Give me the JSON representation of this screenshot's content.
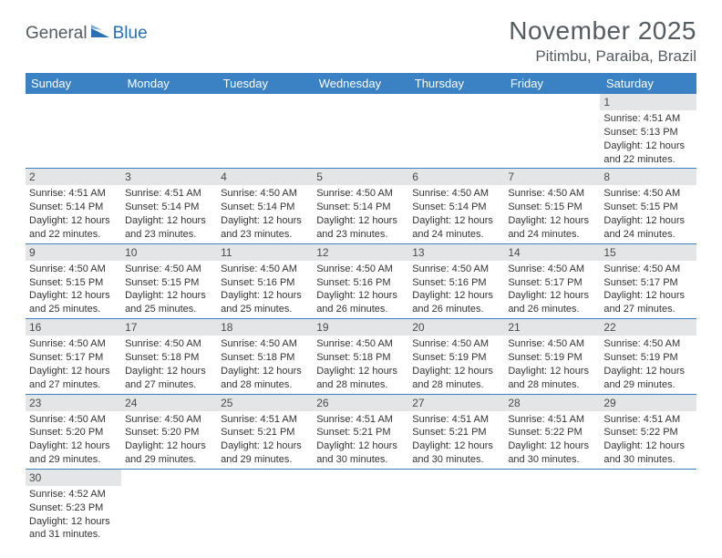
{
  "brand": {
    "part1": "General",
    "part2": "Blue"
  },
  "title": "November 2025",
  "location": "Pitimbu, Paraiba, Brazil",
  "colors": {
    "header_bg": "#3b82c4",
    "header_text": "#ffffff",
    "daynum_bg": "#e4e5e6",
    "rule": "#3b82c4",
    "logo_gray": "#555c60",
    "logo_blue": "#2a6fb5"
  },
  "weekdays": [
    "Sunday",
    "Monday",
    "Tuesday",
    "Wednesday",
    "Thursday",
    "Friday",
    "Saturday"
  ],
  "weeks": [
    [
      null,
      null,
      null,
      null,
      null,
      null,
      {
        "n": "1",
        "sr": "4:51 AM",
        "ss": "5:13 PM",
        "dl": "12 hours and 22 minutes."
      }
    ],
    [
      {
        "n": "2",
        "sr": "4:51 AM",
        "ss": "5:14 PM",
        "dl": "12 hours and 22 minutes."
      },
      {
        "n": "3",
        "sr": "4:51 AM",
        "ss": "5:14 PM",
        "dl": "12 hours and 23 minutes."
      },
      {
        "n": "4",
        "sr": "4:50 AM",
        "ss": "5:14 PM",
        "dl": "12 hours and 23 minutes."
      },
      {
        "n": "5",
        "sr": "4:50 AM",
        "ss": "5:14 PM",
        "dl": "12 hours and 23 minutes."
      },
      {
        "n": "6",
        "sr": "4:50 AM",
        "ss": "5:14 PM",
        "dl": "12 hours and 24 minutes."
      },
      {
        "n": "7",
        "sr": "4:50 AM",
        "ss": "5:15 PM",
        "dl": "12 hours and 24 minutes."
      },
      {
        "n": "8",
        "sr": "4:50 AM",
        "ss": "5:15 PM",
        "dl": "12 hours and 24 minutes."
      }
    ],
    [
      {
        "n": "9",
        "sr": "4:50 AM",
        "ss": "5:15 PM",
        "dl": "12 hours and 25 minutes."
      },
      {
        "n": "10",
        "sr": "4:50 AM",
        "ss": "5:15 PM",
        "dl": "12 hours and 25 minutes."
      },
      {
        "n": "11",
        "sr": "4:50 AM",
        "ss": "5:16 PM",
        "dl": "12 hours and 25 minutes."
      },
      {
        "n": "12",
        "sr": "4:50 AM",
        "ss": "5:16 PM",
        "dl": "12 hours and 26 minutes."
      },
      {
        "n": "13",
        "sr": "4:50 AM",
        "ss": "5:16 PM",
        "dl": "12 hours and 26 minutes."
      },
      {
        "n": "14",
        "sr": "4:50 AM",
        "ss": "5:17 PM",
        "dl": "12 hours and 26 minutes."
      },
      {
        "n": "15",
        "sr": "4:50 AM",
        "ss": "5:17 PM",
        "dl": "12 hours and 27 minutes."
      }
    ],
    [
      {
        "n": "16",
        "sr": "4:50 AM",
        "ss": "5:17 PM",
        "dl": "12 hours and 27 minutes."
      },
      {
        "n": "17",
        "sr": "4:50 AM",
        "ss": "5:18 PM",
        "dl": "12 hours and 27 minutes."
      },
      {
        "n": "18",
        "sr": "4:50 AM",
        "ss": "5:18 PM",
        "dl": "12 hours and 28 minutes."
      },
      {
        "n": "19",
        "sr": "4:50 AM",
        "ss": "5:18 PM",
        "dl": "12 hours and 28 minutes."
      },
      {
        "n": "20",
        "sr": "4:50 AM",
        "ss": "5:19 PM",
        "dl": "12 hours and 28 minutes."
      },
      {
        "n": "21",
        "sr": "4:50 AM",
        "ss": "5:19 PM",
        "dl": "12 hours and 28 minutes."
      },
      {
        "n": "22",
        "sr": "4:50 AM",
        "ss": "5:19 PM",
        "dl": "12 hours and 29 minutes."
      }
    ],
    [
      {
        "n": "23",
        "sr": "4:50 AM",
        "ss": "5:20 PM",
        "dl": "12 hours and 29 minutes."
      },
      {
        "n": "24",
        "sr": "4:50 AM",
        "ss": "5:20 PM",
        "dl": "12 hours and 29 minutes."
      },
      {
        "n": "25",
        "sr": "4:51 AM",
        "ss": "5:21 PM",
        "dl": "12 hours and 29 minutes."
      },
      {
        "n": "26",
        "sr": "4:51 AM",
        "ss": "5:21 PM",
        "dl": "12 hours and 30 minutes."
      },
      {
        "n": "27",
        "sr": "4:51 AM",
        "ss": "5:21 PM",
        "dl": "12 hours and 30 minutes."
      },
      {
        "n": "28",
        "sr": "4:51 AM",
        "ss": "5:22 PM",
        "dl": "12 hours and 30 minutes."
      },
      {
        "n": "29",
        "sr": "4:51 AM",
        "ss": "5:22 PM",
        "dl": "12 hours and 30 minutes."
      }
    ],
    [
      {
        "n": "30",
        "sr": "4:52 AM",
        "ss": "5:23 PM",
        "dl": "12 hours and 31 minutes."
      },
      null,
      null,
      null,
      null,
      null,
      null
    ]
  ],
  "labels": {
    "sunrise": "Sunrise: ",
    "sunset": "Sunset: ",
    "daylight": "Daylight: "
  }
}
